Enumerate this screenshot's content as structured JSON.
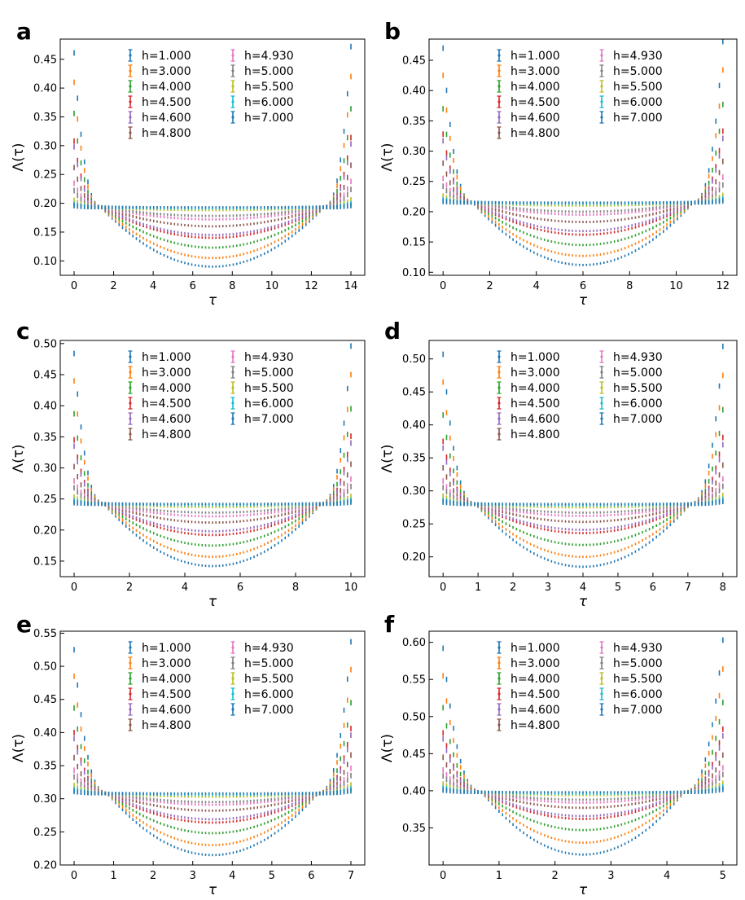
{
  "figure": {
    "ylabel": "Λ(τ)",
    "xlabel": "τ"
  },
  "chart_data": [
    {
      "type": "scatter",
      "panel_label": "a",
      "xlabel": "τ",
      "ylabel": "Λ(τ)",
      "xlim": [
        -0.7,
        14.7
      ],
      "ylim": [
        0.075,
        0.485
      ],
      "xticks": [
        0,
        2,
        4,
        6,
        8,
        10,
        12,
        14
      ],
      "yticks": [
        0.1,
        0.15,
        0.2,
        0.25,
        0.3,
        0.35,
        0.4,
        0.45
      ],
      "ytick_labels": [
        "0.10",
        "0.15",
        "0.20",
        "0.25",
        "0.30",
        "0.35",
        "0.40",
        "0.45"
      ],
      "tau_max": 14,
      "crossing_tau": 1.4,
      "crossing_value": 0.193,
      "series": [
        {
          "name": "h=1.000",
          "color": "#1f77b4",
          "min": 0.09,
          "edge_left": 0.461,
          "edge_right": 0.472
        },
        {
          "name": "h=3.000",
          "color": "#ff7f0e",
          "min": 0.105,
          "edge_left": 0.41,
          "edge_right": 0.42
        },
        {
          "name": "h=4.000",
          "color": "#2ca02c",
          "min": 0.123,
          "edge_left": 0.356,
          "edge_right": 0.364
        },
        {
          "name": "h=4.500",
          "color": "#d62728",
          "min": 0.14,
          "edge_left": 0.308,
          "edge_right": 0.314
        },
        {
          "name": "h=4.600",
          "color": "#9467bd",
          "min": 0.145,
          "edge_left": 0.298,
          "edge_right": 0.303
        },
        {
          "name": "h=4.800",
          "color": "#8c564b",
          "min": 0.16,
          "edge_left": 0.262,
          "edge_right": 0.266
        },
        {
          "name": "h=4.930",
          "color": "#e377c2",
          "min": 0.172,
          "edge_left": 0.235,
          "edge_right": 0.238
        },
        {
          "name": "h=5.000",
          "color": "#7f7f7f",
          "min": 0.178,
          "edge_left": 0.222,
          "edge_right": 0.224
        },
        {
          "name": "h=5.500",
          "color": "#bcbd22",
          "min": 0.188,
          "edge_left": 0.205,
          "edge_right": 0.206
        },
        {
          "name": "h=6.000",
          "color": "#17becf",
          "min": 0.191,
          "edge_left": 0.198,
          "edge_right": 0.199
        },
        {
          "name": "h=7.000",
          "color": "#1f77b4",
          "min": 0.193,
          "edge_left": 0.196,
          "edge_right": 0.196
        }
      ]
    },
    {
      "type": "scatter",
      "panel_label": "b",
      "xlabel": "τ",
      "ylabel": "Λ(τ)",
      "xlim": [
        -0.6,
        12.6
      ],
      "ylim": [
        0.095,
        0.485
      ],
      "xticks": [
        0,
        2,
        4,
        6,
        8,
        10,
        12
      ],
      "yticks": [
        0.1,
        0.15,
        0.2,
        0.25,
        0.3,
        0.35,
        0.4,
        0.45
      ],
      "ytick_labels": [
        "0.10",
        "0.15",
        "0.20",
        "0.25",
        "0.30",
        "0.35",
        "0.40",
        "0.45"
      ],
      "tau_max": 12,
      "crossing_tau": 1.3,
      "crossing_value": 0.215,
      "series": [
        {
          "name": "h=1.000",
          "color": "#1f77b4",
          "min": 0.112,
          "edge_left": 0.47,
          "edge_right": 0.481
        },
        {
          "name": "h=3.000",
          "color": "#ff7f0e",
          "min": 0.127,
          "edge_left": 0.425,
          "edge_right": 0.434
        },
        {
          "name": "h=4.000",
          "color": "#2ca02c",
          "min": 0.145,
          "edge_left": 0.37,
          "edge_right": 0.377
        },
        {
          "name": "h=4.500",
          "color": "#d62728",
          "min": 0.162,
          "edge_left": 0.328,
          "edge_right": 0.333
        },
        {
          "name": "h=4.600",
          "color": "#9467bd",
          "min": 0.168,
          "edge_left": 0.317,
          "edge_right": 0.321
        },
        {
          "name": "h=4.800",
          "color": "#8c564b",
          "min": 0.183,
          "edge_left": 0.28,
          "edge_right": 0.283
        },
        {
          "name": "h=4.930",
          "color": "#e377c2",
          "min": 0.195,
          "edge_left": 0.255,
          "edge_right": 0.257
        },
        {
          "name": "h=5.000",
          "color": "#7f7f7f",
          "min": 0.2,
          "edge_left": 0.242,
          "edge_right": 0.244
        },
        {
          "name": "h=5.500",
          "color": "#bcbd22",
          "min": 0.21,
          "edge_left": 0.226,
          "edge_right": 0.227
        },
        {
          "name": "h=6.000",
          "color": "#17becf",
          "min": 0.213,
          "edge_left": 0.22,
          "edge_right": 0.221
        },
        {
          "name": "h=7.000",
          "color": "#1f77b4",
          "min": 0.215,
          "edge_left": 0.217,
          "edge_right": 0.218
        }
      ]
    },
    {
      "type": "scatter",
      "panel_label": "c",
      "xlabel": "τ",
      "ylabel": "Λ(τ)",
      "xlim": [
        -0.5,
        10.5
      ],
      "ylim": [
        0.125,
        0.505
      ],
      "xticks": [
        0,
        2,
        4,
        6,
        8,
        10
      ],
      "yticks": [
        0.15,
        0.2,
        0.25,
        0.3,
        0.35,
        0.4,
        0.45,
        0.5
      ],
      "ytick_labels": [
        "0.15",
        "0.20",
        "0.25",
        "0.30",
        "0.35",
        "0.40",
        "0.45",
        "0.50"
      ],
      "tau_max": 10,
      "crossing_tau": 1.1,
      "crossing_value": 0.242,
      "series": [
        {
          "name": "h=1.000",
          "color": "#1f77b4",
          "min": 0.142,
          "edge_left": 0.484,
          "edge_right": 0.496
        },
        {
          "name": "h=3.000",
          "color": "#ff7f0e",
          "min": 0.157,
          "edge_left": 0.44,
          "edge_right": 0.45
        },
        {
          "name": "h=4.000",
          "color": "#2ca02c",
          "min": 0.175,
          "edge_left": 0.387,
          "edge_right": 0.395
        },
        {
          "name": "h=4.500",
          "color": "#d62728",
          "min": 0.192,
          "edge_left": 0.345,
          "edge_right": 0.351
        },
        {
          "name": "h=4.600",
          "color": "#9467bd",
          "min": 0.198,
          "edge_left": 0.335,
          "edge_right": 0.34
        },
        {
          "name": "h=4.800",
          "color": "#8c564b",
          "min": 0.212,
          "edge_left": 0.302,
          "edge_right": 0.306
        },
        {
          "name": "h=4.930",
          "color": "#e377c2",
          "min": 0.222,
          "edge_left": 0.279,
          "edge_right": 0.282
        },
        {
          "name": "h=5.000",
          "color": "#7f7f7f",
          "min": 0.228,
          "edge_left": 0.268,
          "edge_right": 0.27
        },
        {
          "name": "h=5.500",
          "color": "#bcbd22",
          "min": 0.237,
          "edge_left": 0.253,
          "edge_right": 0.254
        },
        {
          "name": "h=6.000",
          "color": "#17becf",
          "min": 0.24,
          "edge_left": 0.247,
          "edge_right": 0.248
        },
        {
          "name": "h=7.000",
          "color": "#1f77b4",
          "min": 0.242,
          "edge_left": 0.244,
          "edge_right": 0.245
        }
      ]
    },
    {
      "type": "scatter",
      "panel_label": "d",
      "xlabel": "τ",
      "ylabel": "Λ(τ)",
      "xlim": [
        -0.4,
        8.4
      ],
      "ylim": [
        0.17,
        0.528
      ],
      "xticks": [
        0,
        1,
        2,
        3,
        4,
        5,
        6,
        7,
        8
      ],
      "yticks": [
        0.2,
        0.25,
        0.3,
        0.35,
        0.4,
        0.45,
        0.5
      ],
      "ytick_labels": [
        "0.20",
        "0.25",
        "0.30",
        "0.35",
        "0.40",
        "0.45",
        "0.50"
      ],
      "tau_max": 8,
      "crossing_tau": 0.95,
      "crossing_value": 0.28,
      "series": [
        {
          "name": "h=1.000",
          "color": "#1f77b4",
          "min": 0.185,
          "edge_left": 0.507,
          "edge_right": 0.519
        },
        {
          "name": "h=3.000",
          "color": "#ff7f0e",
          "min": 0.2,
          "edge_left": 0.465,
          "edge_right": 0.475
        },
        {
          "name": "h=4.000",
          "color": "#2ca02c",
          "min": 0.218,
          "edge_left": 0.415,
          "edge_right": 0.423
        },
        {
          "name": "h=4.500",
          "color": "#d62728",
          "min": 0.236,
          "edge_left": 0.375,
          "edge_right": 0.381
        },
        {
          "name": "h=4.600",
          "color": "#9467bd",
          "min": 0.241,
          "edge_left": 0.365,
          "edge_right": 0.37
        },
        {
          "name": "h=4.800",
          "color": "#8c564b",
          "min": 0.253,
          "edge_left": 0.335,
          "edge_right": 0.339
        },
        {
          "name": "h=4.930",
          "color": "#e377c2",
          "min": 0.262,
          "edge_left": 0.315,
          "edge_right": 0.318
        },
        {
          "name": "h=5.000",
          "color": "#7f7f7f",
          "min": 0.267,
          "edge_left": 0.305,
          "edge_right": 0.307
        },
        {
          "name": "h=5.500",
          "color": "#bcbd22",
          "min": 0.275,
          "edge_left": 0.292,
          "edge_right": 0.293
        },
        {
          "name": "h=6.000",
          "color": "#17becf",
          "min": 0.278,
          "edge_left": 0.286,
          "edge_right": 0.287
        },
        {
          "name": "h=7.000",
          "color": "#1f77b4",
          "min": 0.28,
          "edge_left": 0.283,
          "edge_right": 0.284
        }
      ]
    },
    {
      "type": "scatter",
      "panel_label": "e",
      "xlabel": "τ",
      "ylabel": "Λ(τ)",
      "xlim": [
        -0.35,
        7.35
      ],
      "ylim": [
        0.2,
        0.553
      ],
      "xticks": [
        0,
        1,
        2,
        3,
        4,
        5,
        6,
        7
      ],
      "yticks": [
        0.2,
        0.25,
        0.3,
        0.35,
        0.4,
        0.45,
        0.5,
        0.55
      ],
      "ytick_labels": [
        "0.20",
        "0.25",
        "0.30",
        "0.35",
        "0.40",
        "0.45",
        "0.50",
        "0.55"
      ],
      "tau_max": 7,
      "crossing_tau": 0.85,
      "crossing_value": 0.308,
      "series": [
        {
          "name": "h=1.000",
          "color": "#1f77b4",
          "min": 0.215,
          "edge_left": 0.525,
          "edge_right": 0.537
        },
        {
          "name": "h=3.000",
          "color": "#ff7f0e",
          "min": 0.23,
          "edge_left": 0.485,
          "edge_right": 0.495
        },
        {
          "name": "h=4.000",
          "color": "#2ca02c",
          "min": 0.248,
          "edge_left": 0.437,
          "edge_right": 0.445
        },
        {
          "name": "h=4.500",
          "color": "#d62728",
          "min": 0.264,
          "edge_left": 0.4,
          "edge_right": 0.406
        },
        {
          "name": "h=4.600",
          "color": "#9467bd",
          "min": 0.269,
          "edge_left": 0.391,
          "edge_right": 0.396
        },
        {
          "name": "h=4.800",
          "color": "#8c564b",
          "min": 0.282,
          "edge_left": 0.362,
          "edge_right": 0.366
        },
        {
          "name": "h=4.930",
          "color": "#e377c2",
          "min": 0.291,
          "edge_left": 0.343,
          "edge_right": 0.346
        },
        {
          "name": "h=5.000",
          "color": "#7f7f7f",
          "min": 0.295,
          "edge_left": 0.333,
          "edge_right": 0.335
        },
        {
          "name": "h=5.500",
          "color": "#bcbd22",
          "min": 0.303,
          "edge_left": 0.32,
          "edge_right": 0.321
        },
        {
          "name": "h=6.000",
          "color": "#17becf",
          "min": 0.306,
          "edge_left": 0.314,
          "edge_right": 0.315
        },
        {
          "name": "h=7.000",
          "color": "#1f77b4",
          "min": 0.308,
          "edge_left": 0.311,
          "edge_right": 0.312
        }
      ]
    },
    {
      "type": "scatter",
      "panel_label": "f",
      "xlabel": "τ",
      "ylabel": "Λ(τ)",
      "xlim": [
        -0.25,
        5.25
      ],
      "ylim": [
        0.3,
        0.615
      ],
      "xticks": [
        0,
        1,
        2,
        3,
        4,
        5
      ],
      "yticks": [
        0.35,
        0.4,
        0.45,
        0.5,
        0.55,
        0.6
      ],
      "ytick_labels": [
        "0.35",
        "0.40",
        "0.45",
        "0.50",
        "0.55",
        "0.60"
      ],
      "tau_max": 5,
      "crossing_tau": 0.7,
      "crossing_value": 0.398,
      "series": [
        {
          "name": "h=1.000",
          "color": "#1f77b4",
          "min": 0.314,
          "edge_left": 0.592,
          "edge_right": 0.603
        },
        {
          "name": "h=3.000",
          "color": "#ff7f0e",
          "min": 0.33,
          "edge_left": 0.555,
          "edge_right": 0.564
        },
        {
          "name": "h=4.000",
          "color": "#2ca02c",
          "min": 0.347,
          "edge_left": 0.512,
          "edge_right": 0.519
        },
        {
          "name": "h=4.500",
          "color": "#d62728",
          "min": 0.362,
          "edge_left": 0.478,
          "edge_right": 0.483
        },
        {
          "name": "h=4.600",
          "color": "#9467bd",
          "min": 0.366,
          "edge_left": 0.47,
          "edge_right": 0.474
        },
        {
          "name": "h=4.800",
          "color": "#8c564b",
          "min": 0.377,
          "edge_left": 0.445,
          "edge_right": 0.448
        },
        {
          "name": "h=4.930",
          "color": "#e377c2",
          "min": 0.384,
          "edge_left": 0.428,
          "edge_right": 0.431
        },
        {
          "name": "h=5.000",
          "color": "#7f7f7f",
          "min": 0.388,
          "edge_left": 0.42,
          "edge_right": 0.422
        },
        {
          "name": "h=5.500",
          "color": "#bcbd22",
          "min": 0.394,
          "edge_left": 0.409,
          "edge_right": 0.41
        },
        {
          "name": "h=6.000",
          "color": "#17becf",
          "min": 0.396,
          "edge_left": 0.404,
          "edge_right": 0.405
        },
        {
          "name": "h=7.000",
          "color": "#1f77b4",
          "min": 0.398,
          "edge_left": 0.401,
          "edge_right": 0.402
        }
      ]
    }
  ]
}
